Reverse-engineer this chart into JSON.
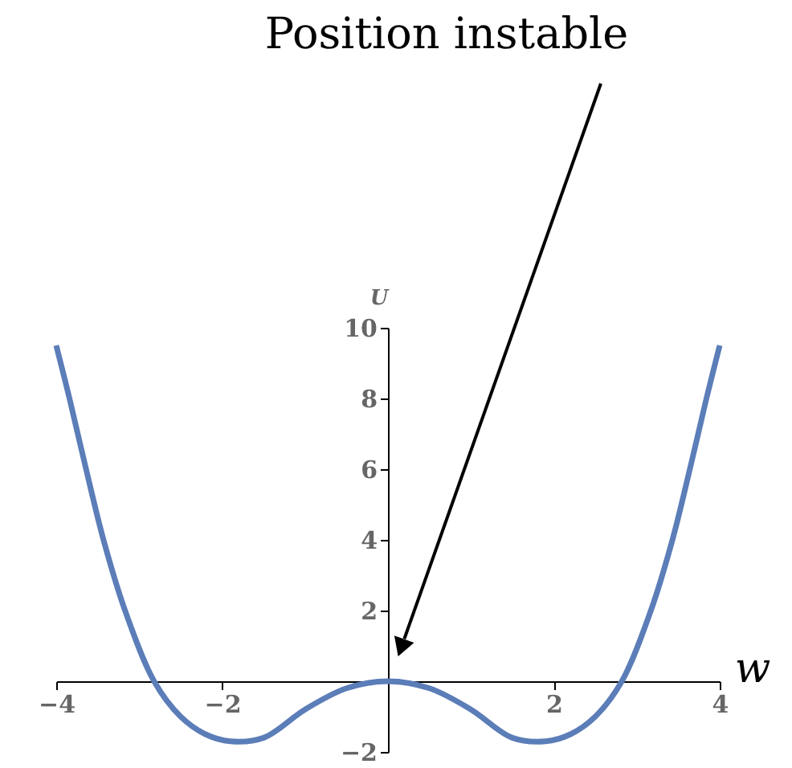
{
  "chart_data": {
    "type": "line",
    "xlabel": "w",
    "ylabel": "U",
    "x": [
      -4,
      -3.84,
      -3.64,
      -3.43,
      -3.17,
      -2.82,
      -2.5,
      -2.2,
      -1.9,
      -1.5,
      -1,
      -0.5,
      0,
      0.5,
      1,
      1.5,
      1.9,
      2.2,
      2.5,
      2.82,
      3.17,
      3.43,
      3.64,
      3.84,
      4
    ],
    "series": [
      {
        "color": "#5b7db8",
        "values": [
          9.5,
          8,
          6,
          4,
          2,
          0,
          -1.0,
          -1.5,
          -1.7,
          -1.6,
          -0.8,
          -0.2,
          0,
          -0.2,
          -0.8,
          -1.6,
          -1.7,
          -1.5,
          -1.0,
          0,
          2,
          4,
          6,
          8,
          9.5
        ]
      }
    ],
    "xlim": [
      -4,
      4
    ],
    "ylim": [
      -2,
      10
    ],
    "xticks": [
      -4,
      -2,
      2,
      4
    ],
    "yticks": [
      -2,
      2,
      4,
      6,
      8,
      10
    ],
    "grid": false,
    "marker": "none",
    "line_style": "solid",
    "annotations": [
      "Position instable"
    ]
  }
}
